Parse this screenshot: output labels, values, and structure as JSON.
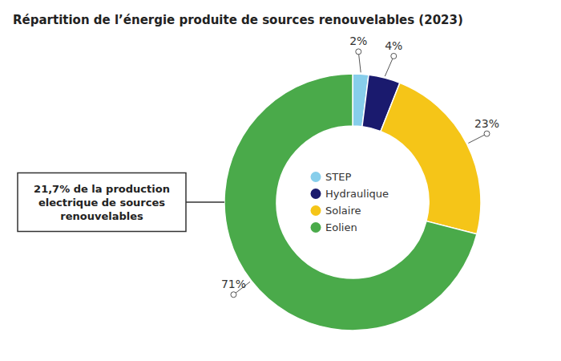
{
  "chart_data": {
    "type": "pie",
    "title": "Répartition de l’énergie produite de sources renouvelables (2023)",
    "categories": [
      "STEP",
      "Hydraulique",
      "Solaire",
      "Eolien"
    ],
    "values": [
      2,
      4,
      23,
      71
    ],
    "value_labels": [
      "2%",
      "4%",
      "23%",
      "71%"
    ],
    "colors": [
      "#87ceeb",
      "#1a1a6e",
      "#f5c518",
      "#4aaa4a"
    ],
    "data_labels": true,
    "legend": "center",
    "annotations": [
      "21,7% de la production\nelectrique de sources\nrenouvelables"
    ]
  }
}
